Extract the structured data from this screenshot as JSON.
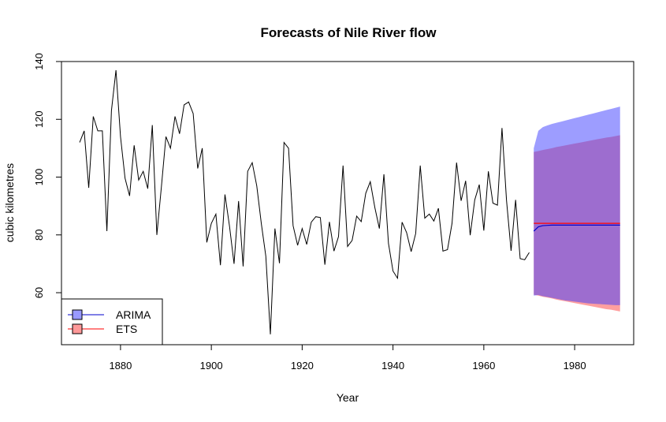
{
  "chart_data": {
    "type": "line",
    "title": "Forecasts of Nile River flow",
    "xlabel": "Year",
    "ylabel": "cubic kilometres",
    "xlim": [
      1867,
      1993
    ],
    "ylim": [
      42,
      140
    ],
    "x_ticks": [
      1880,
      1900,
      1920,
      1940,
      1960,
      1980
    ],
    "y_ticks": [
      60,
      80,
      100,
      120,
      140
    ],
    "grid": false,
    "legend_position": "bottom-left",
    "legend": [
      {
        "label": "ARIMA",
        "fill": "#9999ff",
        "line": "#0000cc"
      },
      {
        "label": "ETS",
        "fill": "#ff9999",
        "line": "#ff0000"
      }
    ],
    "observed": {
      "start_year": 1871,
      "color": "#000000",
      "values": [
        112.0,
        116.0,
        96.3,
        121.0,
        116.0,
        116.0,
        81.3,
        123.0,
        137.0,
        114.0,
        99.6,
        93.5,
        111.0,
        99.0,
        102.0,
        96.0,
        118.0,
        80.0,
        96.6,
        114.0,
        110.0,
        121.0,
        115.0,
        125.0,
        126.0,
        122.0,
        103.0,
        110.0,
        77.4,
        84.0,
        87.2,
        69.5,
        94.0,
        83.0,
        70.0,
        91.7,
        69.1,
        102.0,
        105.0,
        97.0,
        84.0,
        72.6,
        45.6,
        82.2,
        70.2,
        112.0,
        110.0,
        83.2,
        76.4,
        82.2,
        76.7,
        84.4,
        86.3,
        86.0,
        69.7,
        84.5,
        74.4,
        79.4,
        104.0,
        76.0,
        78.1,
        86.5,
        84.6,
        94.4,
        98.4,
        89.5,
        82.2,
        101.0,
        77.1,
        67.5,
        65.0,
        84.4,
        80.8,
        74.2,
        80.5,
        104.0,
        85.8,
        87.2,
        84.8,
        89.2,
        74.4,
        74.9,
        84.0,
        105.0,
        91.8,
        98.7,
        79.9,
        92.1,
        97.4,
        81.5,
        102.0,
        91.0,
        90.3,
        117.0,
        91.9,
        74.5,
        92.1,
        71.8,
        71.4,
        73.9
      ]
    },
    "forecasts": [
      {
        "name": "ETS",
        "years": [
          1971,
          1972,
          1973,
          1974,
          1975,
          1976,
          1977,
          1978,
          1979,
          1980,
          1981,
          1982,
          1983,
          1984,
          1985,
          1986,
          1987,
          1988,
          1989,
          1990
        ],
        "mean": [
          84.0,
          84.0,
          84.0,
          84.0,
          84.0,
          84.0,
          84.0,
          84.0,
          84.0,
          84.0,
          84.0,
          84.0,
          84.0,
          84.0,
          84.0,
          84.0,
          84.0,
          84.0,
          84.0,
          84.0
        ],
        "lower": [
          59.3,
          59.0,
          58.6,
          58.3,
          58.0,
          57.6,
          57.3,
          57.0,
          56.7,
          56.4,
          56.1,
          55.8,
          55.5,
          55.2,
          54.9,
          54.6,
          54.3,
          54.1,
          53.8,
          53.5
        ],
        "upper": [
          108.7,
          109.0,
          109.4,
          109.7,
          110.0,
          110.4,
          110.7,
          111.0,
          111.3,
          111.6,
          111.9,
          112.2,
          112.5,
          112.8,
          113.1,
          113.4,
          113.7,
          113.9,
          114.2,
          114.5
        ],
        "fill": "rgba(255,80,80,0.55)",
        "line": "#ff0000"
      },
      {
        "name": "ARIMA",
        "years": [
          1971,
          1972,
          1973,
          1974,
          1975,
          1976,
          1977,
          1978,
          1979,
          1980,
          1981,
          1982,
          1983,
          1984,
          1985,
          1986,
          1987,
          1988,
          1989,
          1990
        ],
        "mean": [
          81.3,
          82.8,
          83.2,
          83.3,
          83.4,
          83.4,
          83.4,
          83.4,
          83.4,
          83.4,
          83.4,
          83.4,
          83.4,
          83.4,
          83.4,
          83.4,
          83.4,
          83.4,
          83.4,
          83.4
        ],
        "lower": [
          59.0,
          59.2,
          58.8,
          58.5,
          58.2,
          57.9,
          57.6,
          57.3,
          57.1,
          56.9,
          56.7,
          56.5,
          56.3,
          56.2,
          56.1,
          56.0,
          55.9,
          55.8,
          55.7,
          55.7
        ],
        "upper": [
          110.0,
          116.0,
          117.3,
          117.9,
          118.4,
          118.8,
          119.2,
          119.6,
          120.0,
          120.4,
          120.8,
          121.2,
          121.6,
          122.0,
          122.4,
          122.8,
          123.2,
          123.6,
          124.0,
          124.4
        ],
        "fill": "rgba(60,60,255,0.5)",
        "line": "#0000cc"
      }
    ]
  }
}
